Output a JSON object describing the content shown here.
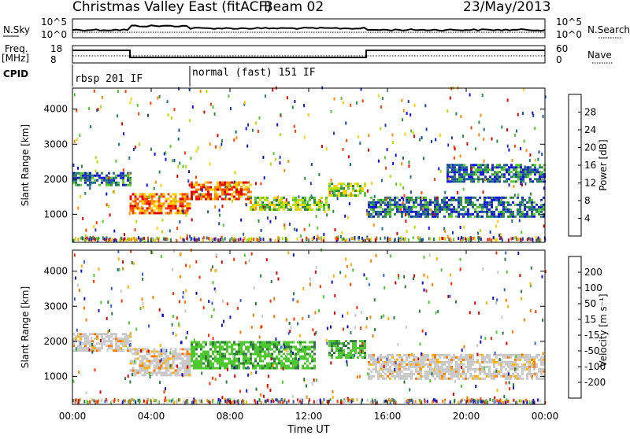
{
  "header": {
    "station": "Christmas Valley East (fitACF)",
    "beam": "Beam 02",
    "date": "23/May/2013"
  },
  "small_panels": {
    "nsky_label": "N.Sky",
    "nsky_ticks": [
      "10^5",
      "10^0"
    ],
    "nsearch_label": "N.Search",
    "nsearch_ticks": [
      "10^5",
      "10^0"
    ],
    "freq_label": [
      "Freq.",
      "[MHz]"
    ],
    "freq_ticks": [
      "18",
      "8"
    ],
    "nave_label": "Nave",
    "nave_ticks": [
      "60",
      "0"
    ],
    "cpid_label": "CPID",
    "cpid_modes": [
      "rbsp 201 IF",
      "normal (fast) 151 IF"
    ]
  },
  "x_axis": {
    "title": "Time UT",
    "ticks": [
      "00:00",
      "04:00",
      "08:00",
      "12:00",
      "16:00",
      "20:00",
      "00:00"
    ]
  },
  "chart_data": [
    {
      "type": "heatmap",
      "name": "power",
      "ylabel": "Slant Range [km]",
      "yticks": [
        1000,
        2000,
        3000,
        4000
      ],
      "ylim": [
        200,
        4600
      ],
      "xlim_hours": [
        0,
        24
      ],
      "colorbar": {
        "label": "Power [dB]",
        "ticks": [
          "28",
          "24",
          "20",
          "16",
          "12",
          "8",
          "4"
        ],
        "colors": [
          "#e00000",
          "#ff4000",
          "#ff8c00",
          "#ffcf00",
          "#b8e000",
          "#56c82e",
          "#2e8a40",
          "#1f6f8a",
          "#1f3fb0",
          "#1010e0"
        ]
      },
      "echo_bands": [
        {
          "t0": 0.0,
          "t1": 2.9,
          "r0": 1800,
          "r1": 2200,
          "level": "low"
        },
        {
          "t0": 2.9,
          "t1": 6.0,
          "r0": 1000,
          "r1": 1600,
          "level": "high"
        },
        {
          "t0": 6.0,
          "t1": 9.0,
          "r0": 1400,
          "r1": 1900,
          "level": "high"
        },
        {
          "t0": 9.0,
          "t1": 13.0,
          "r0": 1100,
          "r1": 1500,
          "level": "mid"
        },
        {
          "t0": 13.0,
          "t1": 14.8,
          "r0": 1500,
          "r1": 1900,
          "level": "mid"
        },
        {
          "t0": 15.0,
          "t1": 24.0,
          "r0": 900,
          "r1": 1500,
          "level": "low"
        },
        {
          "t0": 19.0,
          "t1": 24.0,
          "r0": 1900,
          "r1": 2400,
          "level": "low"
        }
      ]
    },
    {
      "type": "heatmap",
      "name": "velocity",
      "ylabel": "Slant Range [km]",
      "yticks": [
        1000,
        2000,
        3000,
        4000
      ],
      "ylim": [
        200,
        4600
      ],
      "xlim_hours": [
        0,
        24
      ],
      "colorbar": {
        "label": "Velocity [m s⁻¹]",
        "ticks": [
          "200",
          "100",
          "50",
          "15",
          "-15",
          "-50",
          "-100",
          "-200"
        ],
        "colors": [
          "#1010c8",
          "#3a5fd0",
          "#2e7a40",
          "#4ec82e",
          "#c8c8c8",
          "#ffb000",
          "#ff7a00",
          "#ff3000",
          "#d80000"
        ]
      },
      "echo_bands": [
        {
          "t0": 0.0,
          "t1": 2.9,
          "r0": 1700,
          "r1": 2200,
          "level": "ground"
        },
        {
          "t0": 2.9,
          "t1": 6.0,
          "r0": 1000,
          "r1": 1800,
          "level": "ground"
        },
        {
          "t0": 6.0,
          "t1": 12.3,
          "r0": 1200,
          "r1": 2000,
          "level": "positive"
        },
        {
          "t0": 13.0,
          "t1": 14.8,
          "r0": 1500,
          "r1": 2000,
          "level": "positive"
        },
        {
          "t0": 15.0,
          "t1": 24.0,
          "r0": 900,
          "r1": 1600,
          "level": "ground"
        }
      ]
    }
  ]
}
